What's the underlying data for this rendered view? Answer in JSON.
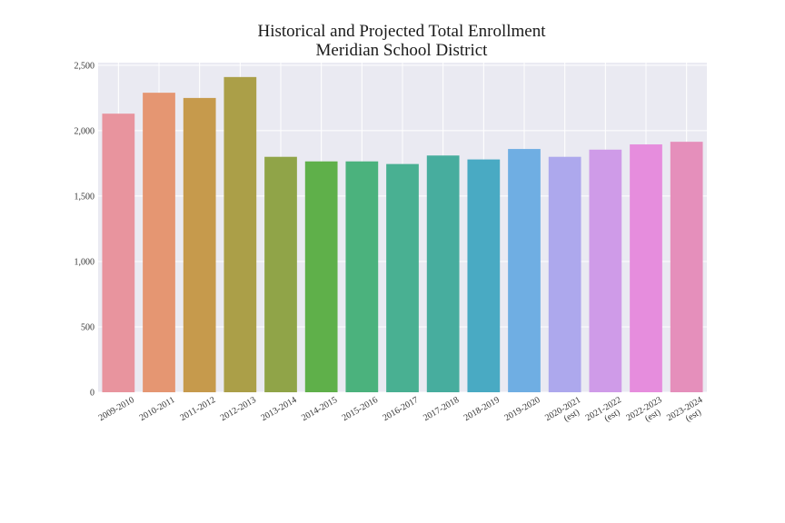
{
  "chart_data": {
    "type": "bar",
    "title": "Historical and Projected Total Enrollment",
    "subtitle": "Meridian School District",
    "xlabel": "",
    "ylabel": "",
    "ylim": [
      0,
      2520
    ],
    "y_ticks": [
      0,
      500,
      1000,
      1500,
      2000,
      2500
    ],
    "y_tick_labels": [
      "0",
      "500",
      "1,000",
      "1,500",
      "2,000",
      "2,500"
    ],
    "grid": true,
    "categories": [
      {
        "line1": "2009-2010",
        "line2": ""
      },
      {
        "line1": "2010-2011",
        "line2": ""
      },
      {
        "line1": "2011-2012",
        "line2": ""
      },
      {
        "line1": "2012-2013",
        "line2": ""
      },
      {
        "line1": "2013-2014",
        "line2": ""
      },
      {
        "line1": "2014-2015",
        "line2": ""
      },
      {
        "line1": "2015-2016",
        "line2": ""
      },
      {
        "line1": "2016-2017",
        "line2": ""
      },
      {
        "line1": "2017-2018",
        "line2": ""
      },
      {
        "line1": "2018-2019",
        "line2": ""
      },
      {
        "line1": "2019-2020",
        "line2": ""
      },
      {
        "line1": "2020-2021",
        "line2": "(est)"
      },
      {
        "line1": "2021-2022",
        "line2": "(est)"
      },
      {
        "line1": "2022-2023",
        "line2": "(est)"
      },
      {
        "line1": "2023-2024",
        "line2": "(est)"
      }
    ],
    "values": [
      2130,
      2290,
      2250,
      2410,
      1800,
      1765,
      1765,
      1745,
      1810,
      1780,
      1860,
      1800,
      1855,
      1895,
      1915
    ],
    "colors": [
      "#e8949e",
      "#e59672",
      "#c69a4c",
      "#ab9f48",
      "#90a448",
      "#5fb04a",
      "#4bb27d",
      "#49b092",
      "#47ad9e",
      "#49aac3",
      "#6faee3",
      "#ada8ed",
      "#cf9be8",
      "#e68ddd",
      "#e58fbb"
    ],
    "background": "#eaeaf2",
    "grid_color": "#ffffff"
  }
}
